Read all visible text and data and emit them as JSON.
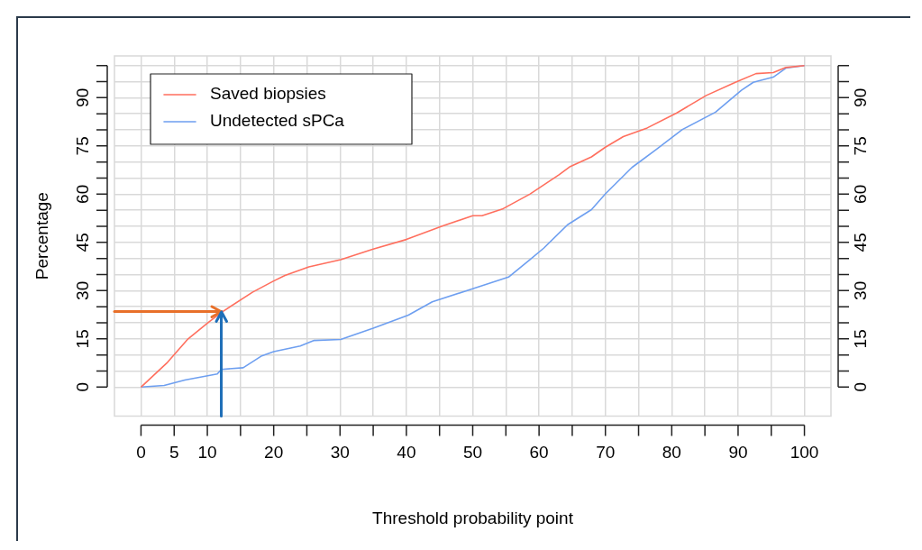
{
  "chart_data": {
    "type": "line",
    "xlabel": "Threshold probability point",
    "ylabel": "Percentage",
    "xlim": [
      -4,
      104
    ],
    "ylim": [
      -9,
      103
    ],
    "y2lim": [
      -9,
      103
    ],
    "xticks": [
      0,
      5,
      10,
      {
        "value": 15,
        "label": null
      },
      20,
      {
        "value": 25,
        "label": null
      },
      30,
      {
        "value": 35,
        "label": null
      },
      40,
      {
        "value": 45,
        "label": null
      },
      50,
      {
        "value": 55,
        "label": null
      },
      60,
      {
        "value": 65,
        "label": null
      },
      70,
      {
        "value": 75,
        "label": null
      },
      80,
      {
        "value": 85,
        "label": null
      },
      90,
      {
        "value": 95,
        "label": null
      },
      100
    ],
    "yticks": [
      0,
      {
        "value": 5,
        "label": null
      },
      {
        "value": 10,
        "label": null
      },
      15,
      {
        "value": 20,
        "label": null
      },
      {
        "value": 25,
        "label": null
      },
      30,
      {
        "value": 35,
        "label": null
      },
      {
        "value": 40,
        "label": null
      },
      45,
      {
        "value": 50,
        "label": null
      },
      {
        "value": 55,
        "label": null
      },
      60,
      {
        "value": 65,
        "label": null
      },
      {
        "value": 70,
        "label": null
      },
      75,
      {
        "value": 80,
        "label": null
      },
      {
        "value": 85,
        "label": null
      },
      90,
      {
        "value": 95,
        "label": null
      },
      {
        "value": 100,
        "label": null
      }
    ],
    "y2ticks": [
      0,
      {
        "value": 5,
        "label": null
      },
      {
        "value": 10,
        "label": null
      },
      15,
      {
        "value": 20,
        "label": null
      },
      {
        "value": 25,
        "label": null
      },
      30,
      {
        "value": 35,
        "label": null
      },
      {
        "value": 40,
        "label": null
      },
      45,
      {
        "value": 50,
        "label": null
      },
      {
        "value": 55,
        "label": null
      },
      60,
      {
        "value": 65,
        "label": null
      },
      {
        "value": 70,
        "label": null
      },
      75,
      {
        "value": 80,
        "label": null
      },
      {
        "value": 85,
        "label": null
      },
      90,
      {
        "value": 95,
        "label": null
      },
      {
        "value": 100,
        "label": null
      }
    ],
    "grid": true,
    "legend": "top left",
    "marker": "none",
    "line_style": "solid",
    "series": [
      {
        "name": "Saved biopsies",
        "color": "#ff6f5e",
        "x": [
          0,
          4,
          7.1,
          10.1,
          12.1,
          16.8,
          20,
          21.7,
          25.3,
          30.1,
          35,
          40,
          45.3,
          50,
          51.4,
          54.6,
          58.6,
          63,
          64.7,
          67.9,
          70,
          72.7,
          76.3,
          80.7,
          85.2,
          89.6,
          92.7,
          95.3,
          97.2,
          100
        ],
        "values": [
          0,
          7.7,
          15,
          20,
          23.2,
          29.5,
          33,
          34.7,
          37.4,
          39.6,
          42.9,
          45.9,
          50,
          53.3,
          53.3,
          55.5,
          60,
          66,
          68.6,
          71.6,
          74.6,
          77.9,
          80.6,
          85.2,
          90.7,
          94.8,
          97.5,
          97.8,
          99.4,
          100
        ]
      },
      {
        "name": "Undetected sPCa",
        "color": "#6e9ff0",
        "x": [
          0,
          3.5,
          6.6,
          11.5,
          12.1,
          15.4,
          18.1,
          20,
          24,
          26.1,
          30.1,
          35,
          40.3,
          43.9,
          50,
          55.4,
          58.6,
          60.7,
          64.3,
          67.9,
          70,
          74,
          77.6,
          81.6,
          86.6,
          90.5,
          92.3,
          95.3,
          97.2,
          100
        ],
        "values": [
          0,
          0.5,
          2.2,
          4.1,
          5.5,
          6,
          9.6,
          11,
          12.8,
          14.5,
          14.8,
          18.3,
          22.4,
          26.5,
          30.6,
          34.2,
          39.6,
          43.2,
          50.5,
          55.2,
          60.1,
          68.3,
          73.8,
          80.1,
          85.5,
          92.3,
          94.8,
          96.4,
          99.2,
          100
        ]
      }
    ],
    "ref_lines": [
      {
        "axis": "y",
        "value": 23.5,
        "color": "#e8702a"
      },
      {
        "axis": "x",
        "value": 12.1,
        "color": "#1f6fb8"
      }
    ]
  }
}
